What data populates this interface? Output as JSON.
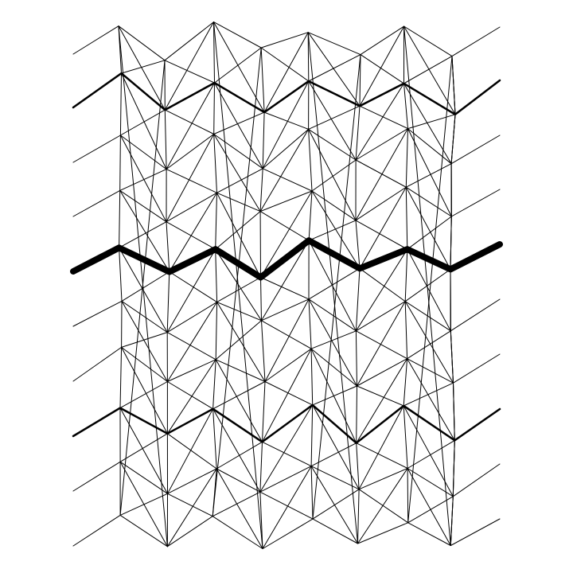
{
  "diagram": {
    "description_kind": "line-drawing",
    "stroke_color": "#000000",
    "background_color": "#ffffff",
    "grid": {
      "columns": 8,
      "rows": 10
    },
    "highlighted_rows": [
      {
        "row": 1,
        "weight": "medium"
      },
      {
        "row": 4,
        "weight": "heavy"
      },
      {
        "row": 7,
        "weight": "medium"
      }
    ]
  }
}
